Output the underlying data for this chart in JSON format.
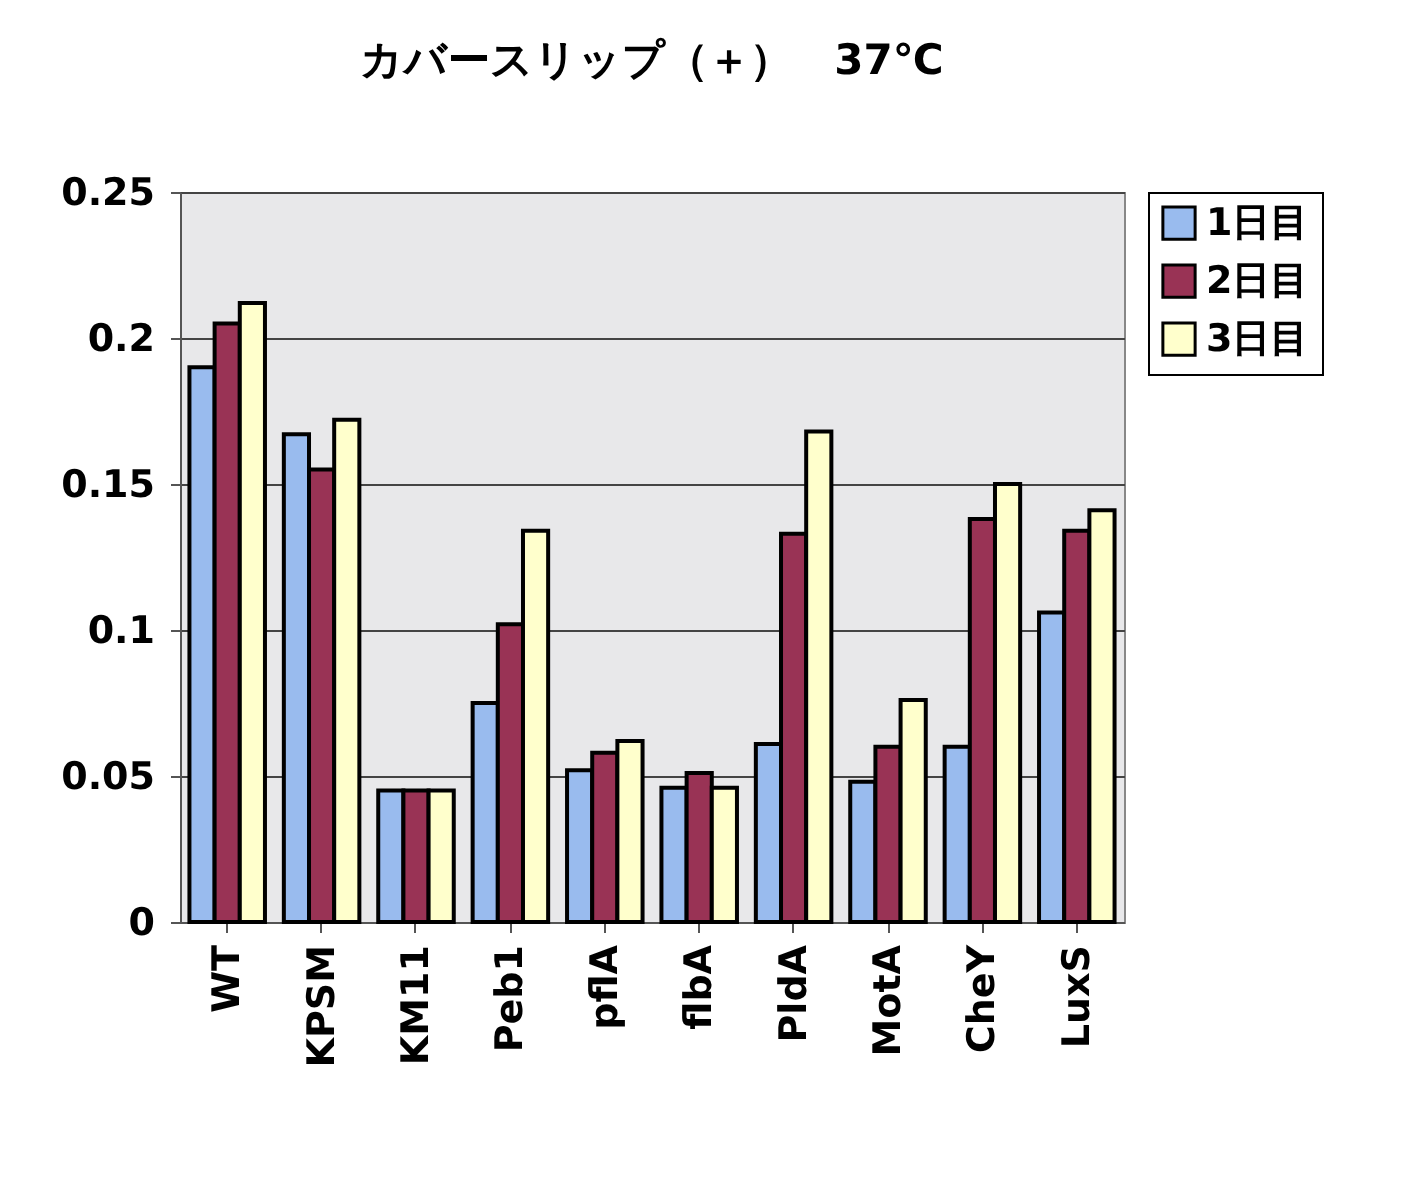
{
  "chart_data": {
    "type": "bar",
    "title": "カバースリップ（＋）　37℃",
    "categories": [
      "WT",
      "KPSM",
      "KM11",
      "Peb1",
      "pflA",
      "flbA",
      "PldA",
      "MotA",
      "CheY",
      "LuxS"
    ],
    "series": [
      {
        "name": "1日目",
        "color": "#99bbee",
        "values": [
          0.19,
          0.167,
          0.045,
          0.075,
          0.052,
          0.046,
          0.061,
          0.048,
          0.06,
          0.106
        ]
      },
      {
        "name": "2日目",
        "color": "#993355",
        "values": [
          0.205,
          0.155,
          0.045,
          0.102,
          0.058,
          0.051,
          0.133,
          0.06,
          0.138,
          0.134
        ]
      },
      {
        "name": "3日目",
        "color": "#ffffcc",
        "values": [
          0.212,
          0.172,
          0.045,
          0.134,
          0.062,
          0.046,
          0.168,
          0.076,
          0.15,
          0.141
        ]
      }
    ],
    "ylim": [
      0,
      0.25
    ],
    "yticks": [
      0,
      0.05,
      0.1,
      0.15,
      0.2,
      0.25
    ],
    "grid": "y",
    "legend": "right"
  }
}
